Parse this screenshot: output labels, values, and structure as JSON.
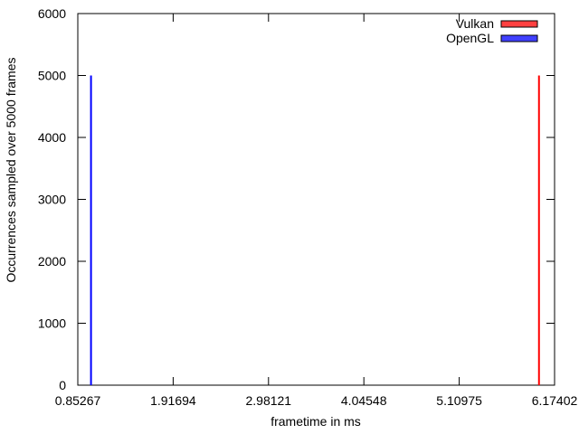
{
  "chart_data": {
    "type": "bar",
    "title": "",
    "xlabel": "frametime in ms",
    "ylabel": "Occurrences sampled over 5000 frames",
    "xlim": [
      0.85267,
      6.17402
    ],
    "ylim": [
      0,
      6000
    ],
    "x_ticks": [
      0.85267,
      1.91694,
      2.98121,
      4.04548,
      5.10975,
      6.17402
    ],
    "x_tick_labels": [
      "0.85267",
      "1.91694",
      "2.98121",
      "4.04548",
      "5.10975",
      "6.17402"
    ],
    "y_ticks": [
      0,
      1000,
      2000,
      3000,
      4000,
      5000,
      6000
    ],
    "y_tick_labels": [
      "0",
      "1000",
      "2000",
      "3000",
      "4000",
      "5000",
      "6000"
    ],
    "grid": false,
    "legend_position": "top-right",
    "series": [
      {
        "name": "Vulkan",
        "color": "#ff0000",
        "fill": "#ff4040",
        "x": [
          6.0
        ],
        "values": [
          5000
        ]
      },
      {
        "name": "OpenGL",
        "color": "#0000ff",
        "fill": "#4040ff",
        "x": [
          1.0
        ],
        "values": [
          5000
        ]
      }
    ]
  }
}
